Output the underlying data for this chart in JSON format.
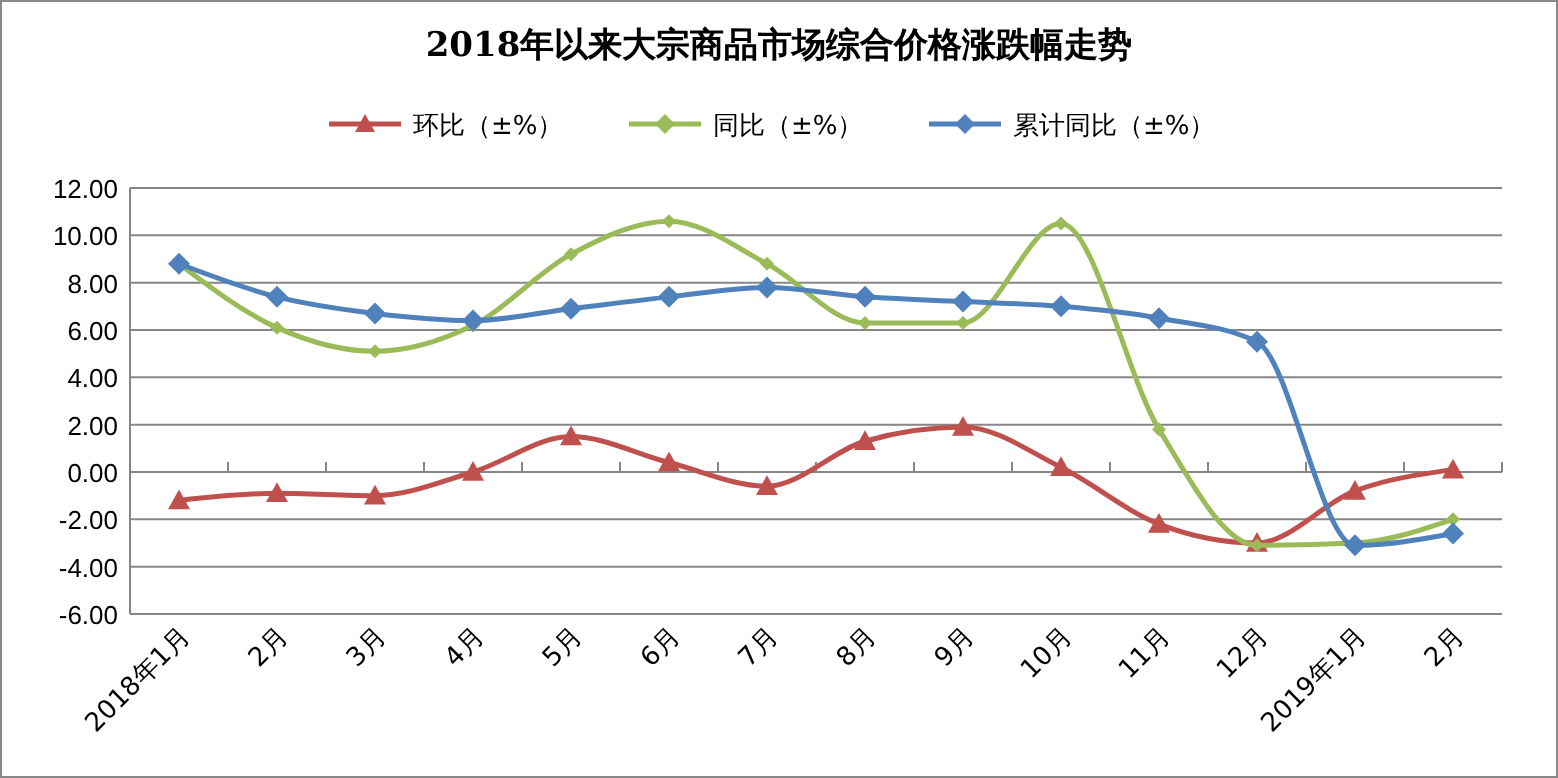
{
  "chart_data": {
    "type": "line",
    "title": "2018年以来大宗商品市场综合价格涨跌幅走势",
    "categories": [
      "2018年1月",
      "2月",
      "3月",
      "4月",
      "5月",
      "6月",
      "7月",
      "8月",
      "9月",
      "10月",
      "11月",
      "12月",
      "2019年1月",
      "2月"
    ],
    "series": [
      {
        "name": "环比（±%）",
        "color": "#c0504d",
        "marker": "triangle",
        "values": [
          -1.2,
          -0.9,
          -1.0,
          0.0,
          1.5,
          0.4,
          -0.6,
          1.3,
          1.9,
          0.2,
          -2.2,
          -3.0,
          -0.8,
          0.1
        ]
      },
      {
        "name": "同比（±%）",
        "color": "#9bbb59",
        "marker": "diamond",
        "values": [
          8.8,
          6.1,
          5.1,
          6.2,
          9.2,
          10.6,
          8.8,
          6.3,
          6.3,
          10.5,
          1.8,
          -3.1,
          -3.0,
          -2.0
        ]
      },
      {
        "name": "累计同比（±%）",
        "color": "#4f81bd",
        "marker": "diamond",
        "values": [
          8.8,
          7.4,
          6.7,
          6.4,
          6.9,
          7.4,
          7.8,
          7.4,
          7.2,
          7.0,
          6.5,
          5.5,
          -3.1,
          -2.6
        ]
      }
    ],
    "ylim": [
      -6,
      12
    ],
    "yticks": [
      {
        "value": -6,
        "label": "-6.00"
      },
      {
        "value": -4,
        "label": "-4.00"
      },
      {
        "value": -2,
        "label": "-2.00"
      },
      {
        "value": 0,
        "label": "0.00"
      },
      {
        "value": 2,
        "label": "2.00"
      },
      {
        "value": 4,
        "label": "4.00"
      },
      {
        "value": 6,
        "label": "6.00"
      },
      {
        "value": 8,
        "label": "8.00"
      },
      {
        "value": 10,
        "label": "10.00"
      },
      {
        "value": 12,
        "label": "12.00"
      }
    ],
    "grid": "y",
    "legend": "top",
    "line_style": "solid"
  }
}
